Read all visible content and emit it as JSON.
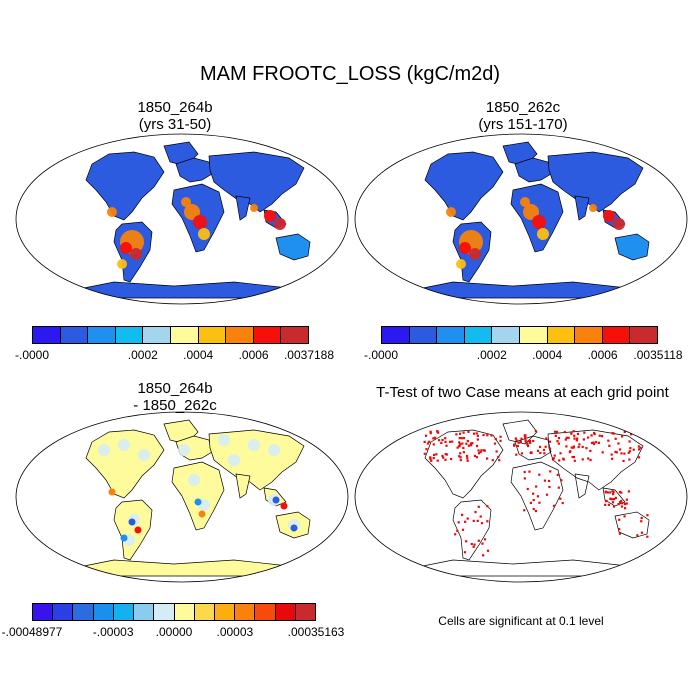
{
  "title": "MAM FROOTC_LOSS (kgC/m2d)",
  "panels": {
    "p1": {
      "title_line1": "1850_264b",
      "title_line2": "(yrs 31-50)"
    },
    "p2": {
      "title_line1": "1850_262c",
      "title_line2": "(yrs 151-170)"
    },
    "p3": {
      "title_line1": "1850_264b",
      "title_line2": "- 1850_262c"
    },
    "p4": {
      "title_line1": "T-Test of two Case means at each grid point"
    }
  },
  "colorbars": {
    "cb1": {
      "colors": [
        "#2a19f0",
        "#2d5bdf",
        "#1f8ff0",
        "#13bcef",
        "#a3d5ef",
        "#fdfb9b",
        "#fbc012",
        "#f8820c",
        "#f70f0a",
        "#c82a2e"
      ],
      "labels": [
        ".0000",
        ".0002",
        ".0004",
        ".0006",
        ".0037188"
      ],
      "label_display": [
        "-.0000",
        ".0002",
        ".0004",
        ".0006",
        ".0037188"
      ]
    },
    "cb2": {
      "colors": [
        "#2a19f0",
        "#2d5bdf",
        "#1f8ff0",
        "#13bcef",
        "#a3d5ef",
        "#fdfb9b",
        "#fbc012",
        "#f8820c",
        "#f70f0a",
        "#c82a2e"
      ],
      "labels": [
        "-.0000",
        ".0002",
        ".0004",
        ".0006",
        ".0035118"
      ]
    },
    "cb3": {
      "colors": [
        "#3a12ee",
        "#2a3fe6",
        "#2d6be0",
        "#1b8ff0",
        "#15b0f0",
        "#8bcbee",
        "#d5ecf6",
        "#fdfb9b",
        "#fcd84a",
        "#fbae0c",
        "#f8820c",
        "#f74a0b",
        "#e80a0a",
        "#c82a2e"
      ],
      "labels": [
        "-.00048977",
        "-.00003",
        ".00000",
        ".00003",
        ".00035163"
      ]
    }
  },
  "note": "Cells are significant at 0.1 level",
  "map_colors": {
    "ocean": "#ffffff",
    "low": "#2d5bdf",
    "low2": "#1f8ff0",
    "mid": "#fbc012",
    "high": "#f8820c",
    "peak": "#f70f0a",
    "max": "#c82a2e",
    "diff_bg": "#fdfb9b",
    "diff_light": "#d5ecf6",
    "signif": "#e80a0a"
  }
}
